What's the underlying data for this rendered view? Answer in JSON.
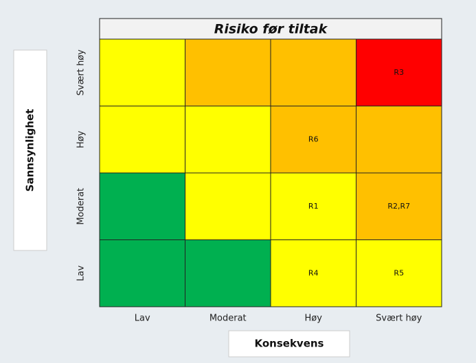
{
  "title": "Risiko før tiltak",
  "y_label": "Sannsynlighet",
  "x_label": "Konsekvens",
  "columns": [
    "Lav",
    "Moderat",
    "Høy",
    "Svært høy"
  ],
  "rows": [
    {
      "label": "Svært høy",
      "cells": [
        {
          "color": "#ffff00"
        },
        {
          "color": "#ffc000"
        },
        {
          "color": "#ffc000"
        },
        {
          "color": "#ff0000",
          "label": "R3"
        }
      ]
    },
    {
      "label": "Høy",
      "cells": [
        {
          "color": "#ffff00"
        },
        {
          "color": "#ffff00"
        },
        {
          "color": "#ffc000",
          "label": "R6"
        },
        {
          "color": "#ffc000"
        }
      ]
    },
    {
      "label": "Moderat",
      "cells": [
        {
          "color": "#00b050"
        },
        {
          "color": "#ffff00"
        },
        {
          "color": "#ffff00",
          "label": "R1"
        },
        {
          "color": "#ffc000",
          "label": "R2,R7"
        }
      ]
    },
    {
      "label": "Lav",
      "cells": [
        {
          "color": "#00b050"
        },
        {
          "color": "#00b050"
        },
        {
          "color": "#ffff00",
          "label": "R4"
        },
        {
          "color": "#ffff00",
          "label": "R5"
        }
      ]
    }
  ]
}
